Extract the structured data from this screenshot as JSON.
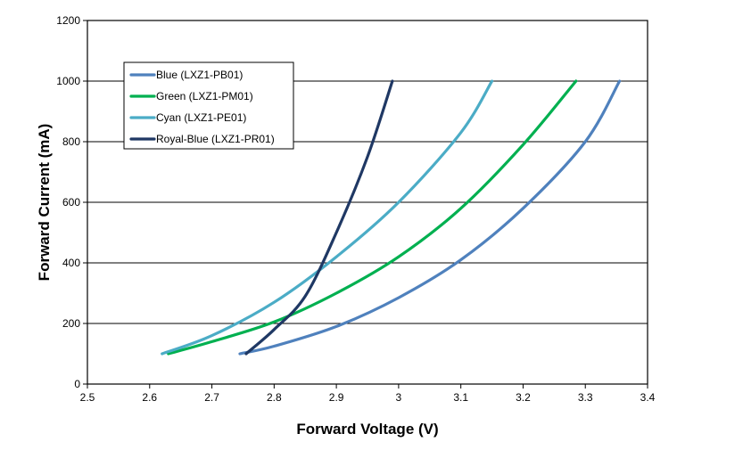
{
  "chart_data": {
    "type": "line",
    "title": "",
    "xlabel": "Forward Voltage (V)",
    "ylabel": "Forward Current (mA)",
    "xlim": [
      2.5,
      3.4
    ],
    "ylim": [
      0,
      1200
    ],
    "xticks": [
      2.5,
      2.6,
      2.7,
      2.8,
      2.9,
      3.0,
      3.1,
      3.2,
      3.3,
      3.4
    ],
    "xtick_labels": [
      "2.5",
      "2.6",
      "2.7",
      "2.8",
      "2.9",
      "3",
      "3.1",
      "3.2",
      "3.3",
      "3.4"
    ],
    "yticks": [
      0,
      200,
      400,
      600,
      800,
      1000,
      1200
    ],
    "ytick_labels": [
      "0",
      "200",
      "400",
      "600",
      "800",
      "1000",
      "1200"
    ],
    "grid": "horizontal",
    "legend_position": "upper-left",
    "series": [
      {
        "name": "Blue (LXZ1-PB01)",
        "color": "#4F81BD",
        "x": [
          2.745,
          2.8,
          2.9,
          3.0,
          3.1,
          3.2,
          3.3,
          3.355
        ],
        "y": [
          100,
          125,
          190,
          285,
          410,
          580,
          800,
          1000
        ]
      },
      {
        "name": "Green (LXZ1-PM01)",
        "color": "#00B050",
        "x": [
          2.63,
          2.7,
          2.8,
          2.9,
          3.0,
          3.1,
          3.2,
          3.285
        ],
        "y": [
          100,
          140,
          205,
          300,
          420,
          580,
          790,
          1000
        ]
      },
      {
        "name": "Cyan (LXZ1-PE01)",
        "color": "#4BACC6",
        "x": [
          2.62,
          2.7,
          2.8,
          2.9,
          3.0,
          3.1,
          3.15
        ],
        "y": [
          100,
          160,
          270,
          420,
          600,
          830,
          1000
        ]
      },
      {
        "name": "Royal-Blue (LXZ1-PR01)",
        "color": "#1F3864",
        "x": [
          2.755,
          2.8,
          2.85,
          2.9,
          2.95,
          2.99
        ],
        "y": [
          100,
          180,
          290,
          500,
          750,
          1000
        ]
      }
    ]
  }
}
